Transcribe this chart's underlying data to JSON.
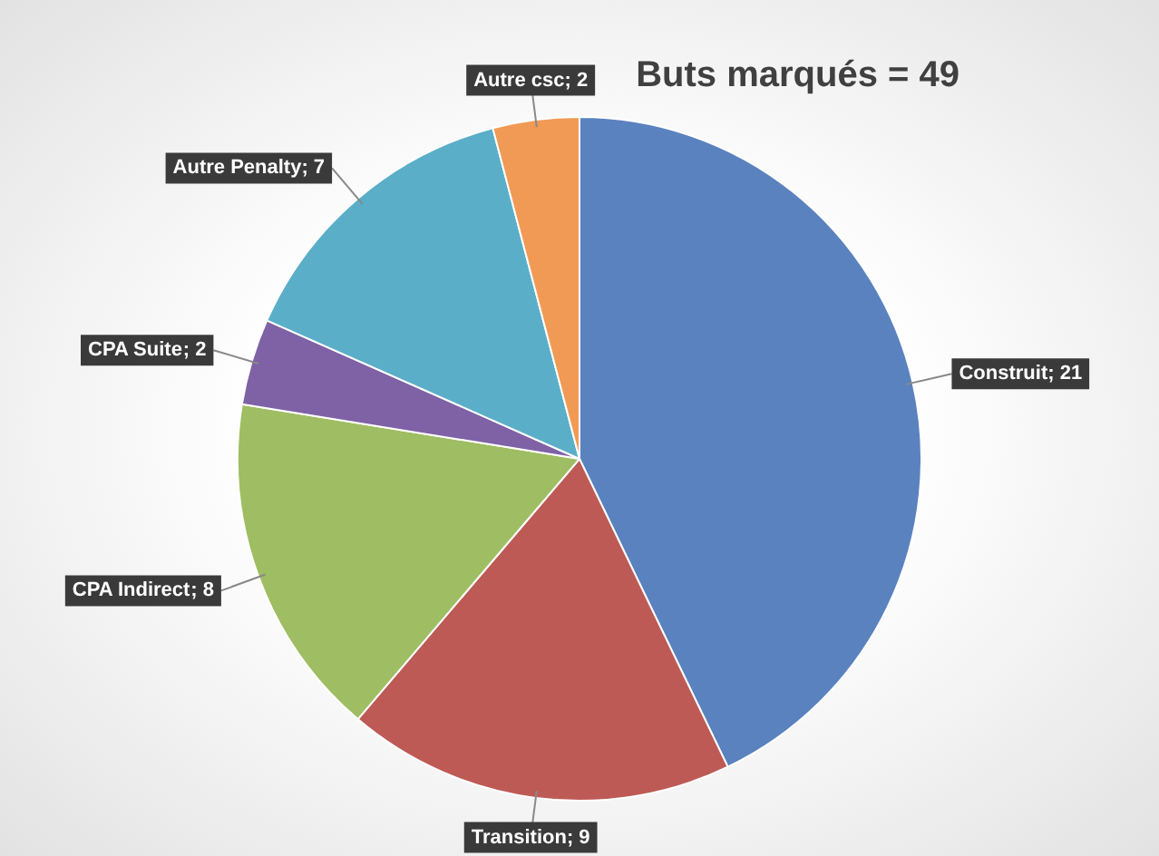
{
  "chart_data": {
    "type": "pie",
    "title": "Buts marqués = 49",
    "categories": [
      "Construit",
      "Transition",
      "CPA Indirect",
      "CPA Suite",
      "Autre Penalty",
      "Autre csc"
    ],
    "values": [
      21,
      9,
      8,
      2,
      7,
      2
    ],
    "value_labels": [
      "; 21",
      "; 9",
      "; 8",
      "; 2",
      "; 7",
      "; 2"
    ],
    "colors": [
      "#5a82bf",
      "#be5a55",
      "#9fbd62",
      "#7e62a5",
      "#5aaec8",
      "#f09a55"
    ],
    "legend": false
  }
}
